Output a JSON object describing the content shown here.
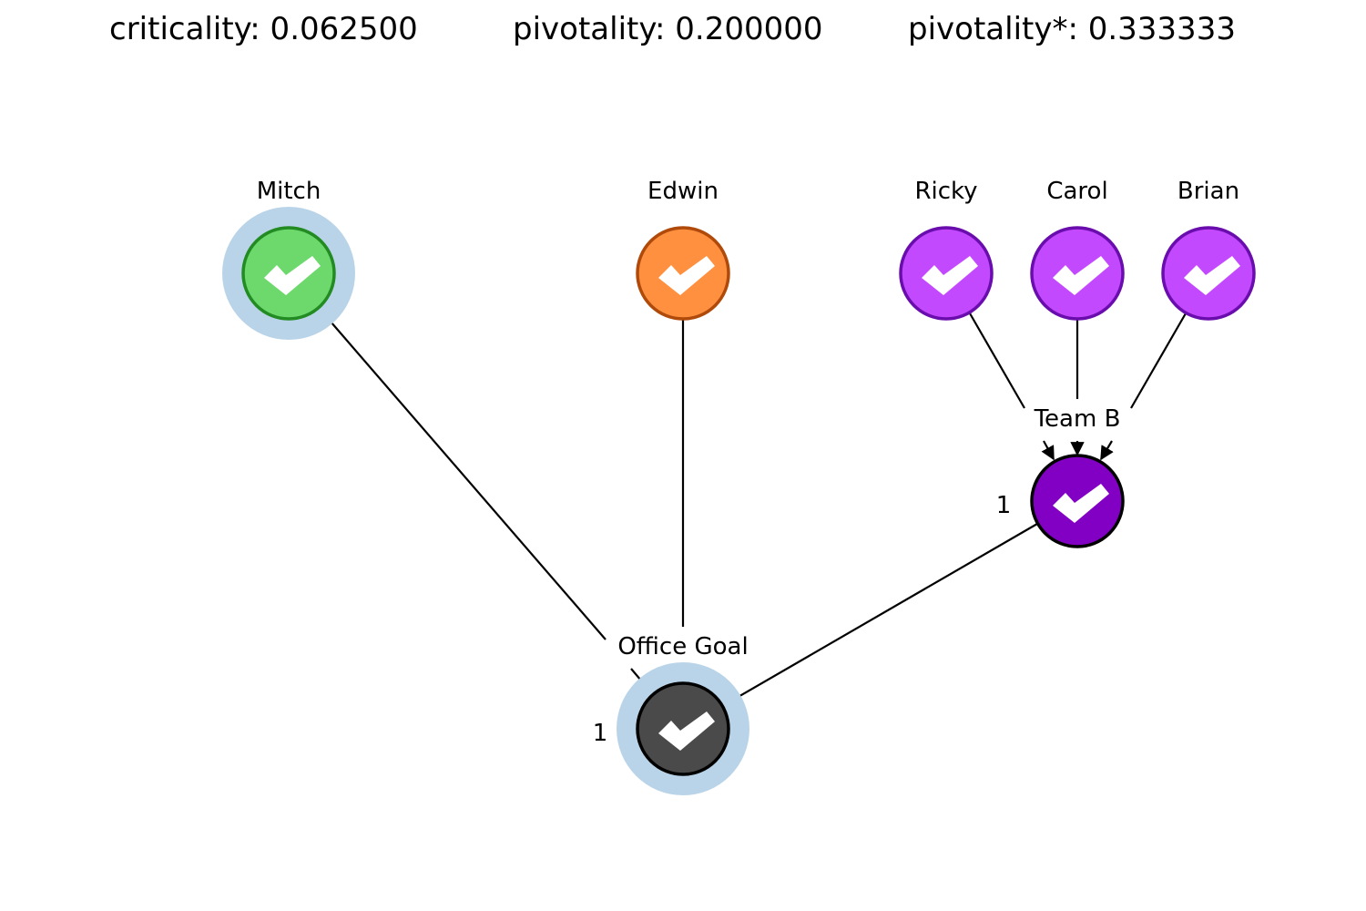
{
  "metrics": {
    "criticality": "criticality: 0.062500",
    "pivotality": "pivotality: 0.200000",
    "pivotality_star": "pivotality*: 0.333333"
  },
  "nodes": {
    "mitch": {
      "label": "Mitch",
      "fill": "#6dd96d",
      "stroke": "#228b22",
      "highlighted": true,
      "icon": "checkmark-icon"
    },
    "edwin": {
      "label": "Edwin",
      "fill": "#ff9040",
      "stroke": "#b04a0a",
      "highlighted": false,
      "icon": "checkmark-icon"
    },
    "ricky": {
      "label": "Ricky",
      "fill": "#c349ff",
      "stroke": "#6a0dad",
      "highlighted": false,
      "icon": "checkmark-icon"
    },
    "carol": {
      "label": "Carol",
      "fill": "#c349ff",
      "stroke": "#6a0dad",
      "highlighted": false,
      "icon": "checkmark-icon"
    },
    "brian": {
      "label": "Brian",
      "fill": "#c349ff",
      "stroke": "#6a0dad",
      "highlighted": false,
      "icon": "checkmark-icon"
    },
    "team_b": {
      "label": "Team B",
      "threshold": "1",
      "fill": "#8200c4",
      "stroke": "#000000",
      "highlighted": false,
      "icon": "checkmark-icon"
    },
    "office_goal": {
      "label": "Office Goal",
      "threshold": "1",
      "fill": "#4a4a4a",
      "stroke": "#000000",
      "highlighted": true,
      "icon": "checkmark-icon"
    }
  },
  "colors": {
    "highlight": "#b9d4e8",
    "edge": "#000000",
    "arrowhead": "#0b2a3f",
    "check": "#ffffff"
  }
}
